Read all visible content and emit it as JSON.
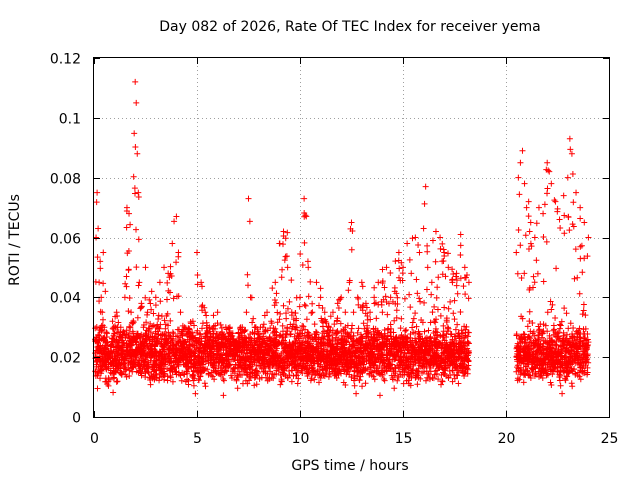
{
  "chart_data": {
    "type": "scatter",
    "title": "Day 082 of 2026, Rate Of TEC Index for receiver yema",
    "xlabel": "GPS time / hours",
    "ylabel": "ROTI / TECUs",
    "xlim": [
      0,
      25
    ],
    "ylim": [
      0,
      0.12
    ],
    "x_ticks": [
      0,
      5,
      10,
      15,
      20,
      25
    ],
    "x_tick_labels": [
      "0",
      "5",
      "10",
      "15",
      "20",
      "25"
    ],
    "y_ticks": [
      0,
      0.02,
      0.04,
      0.06,
      0.08,
      0.1,
      0.12
    ],
    "y_tick_labels": [
      "0",
      "0.02",
      "0.04",
      "0.06",
      "0.08",
      "0.1",
      "0.12"
    ],
    "grid": true,
    "legend": "none",
    "marker": "plus",
    "color": "#ff0000",
    "series": [
      {
        "x": [
          0.05,
          0.1,
          0.15,
          0.2,
          0.25,
          0.3,
          0.35,
          0.4,
          0.45,
          0.5,
          0.55,
          0.6,
          0.65,
          0.7,
          0.75,
          0.8,
          0.85,
          0.9,
          0.95,
          1.0,
          1.1,
          1.2,
          1.3,
          1.4,
          1.5,
          1.6,
          1.7,
          1.8,
          1.9,
          2.0,
          2.05,
          2.1,
          2.15,
          2.2,
          2.3,
          2.4,
          2.5,
          2.6,
          2.8,
          3.0,
          3.2,
          3.4,
          3.6,
          3.8,
          4.0,
          4.1,
          4.2,
          4.4,
          4.6,
          4.8,
          5.0,
          5.2,
          5.4,
          5.6,
          5.8,
          6.0,
          6.2,
          6.4,
          6.6,
          6.8,
          7.0,
          7.2,
          7.4,
          7.5,
          7.6,
          7.8,
          8.0,
          8.2,
          8.4,
          8.6,
          8.8,
          9.0,
          9.2,
          9.4,
          9.6,
          9.8,
          10.0,
          10.2,
          10.4,
          10.6,
          10.8,
          11.0,
          11.2,
          11.4,
          11.6,
          11.8,
          12.0,
          12.2,
          12.4,
          12.5,
          12.6,
          12.8,
          13.0,
          13.2,
          13.4,
          13.6,
          13.8,
          14.0,
          14.2,
          14.4,
          14.6,
          14.8,
          15.0,
          15.2,
          15.4,
          15.6,
          15.8,
          16.0,
          16.1,
          16.2,
          16.4,
          16.6,
          16.8,
          17.0,
          17.2,
          17.4,
          17.6,
          17.8,
          18.0,
          18.2,
          20.5,
          20.6,
          20.7,
          20.8,
          20.9,
          21.0,
          21.1,
          21.2,
          21.4,
          21.6,
          21.8,
          22.0,
          22.1,
          22.2,
          22.4,
          22.6,
          22.8,
          23.0,
          23.1,
          23.2,
          23.4,
          23.6,
          23.8,
          24.0
        ],
        "y": [
          0.026,
          0.06,
          0.075,
          0.063,
          0.045,
          0.052,
          0.04,
          0.035,
          0.055,
          0.03,
          0.042,
          0.028,
          0.025,
          0.022,
          0.02,
          0.018,
          0.024,
          0.032,
          0.03,
          0.028,
          0.035,
          0.025,
          0.03,
          0.022,
          0.04,
          0.07,
          0.068,
          0.035,
          0.028,
          0.112,
          0.105,
          0.088,
          0.075,
          0.045,
          0.038,
          0.03,
          0.05,
          0.035,
          0.042,
          0.04,
          0.045,
          0.05,
          0.048,
          0.058,
          0.067,
          0.055,
          0.035,
          0.03,
          0.028,
          0.032,
          0.055,
          0.045,
          0.035,
          0.03,
          0.028,
          0.035,
          0.025,
          0.03,
          0.028,
          0.022,
          0.025,
          0.03,
          0.035,
          0.073,
          0.04,
          0.03,
          0.028,
          0.03,
          0.035,
          0.032,
          0.045,
          0.058,
          0.062,
          0.05,
          0.035,
          0.03,
          0.04,
          0.073,
          0.05,
          0.035,
          0.045,
          0.04,
          0.035,
          0.03,
          0.035,
          0.032,
          0.04,
          0.035,
          0.045,
          0.065,
          0.035,
          0.04,
          0.045,
          0.038,
          0.035,
          0.04,
          0.045,
          0.035,
          0.05,
          0.04,
          0.042,
          0.055,
          0.05,
          0.058,
          0.048,
          0.06,
          0.055,
          0.063,
          0.077,
          0.05,
          0.045,
          0.062,
          0.06,
          0.055,
          0.05,
          0.045,
          0.048,
          0.061,
          0.05,
          0.045,
          0.055,
          0.08,
          0.085,
          0.089,
          0.078,
          0.07,
          0.072,
          0.065,
          0.06,
          0.07,
          0.068,
          0.085,
          0.082,
          0.078,
          0.072,
          0.066,
          0.074,
          0.08,
          0.093,
          0.088,
          0.075,
          0.07,
          0.065,
          0.06
        ]
      }
    ]
  }
}
